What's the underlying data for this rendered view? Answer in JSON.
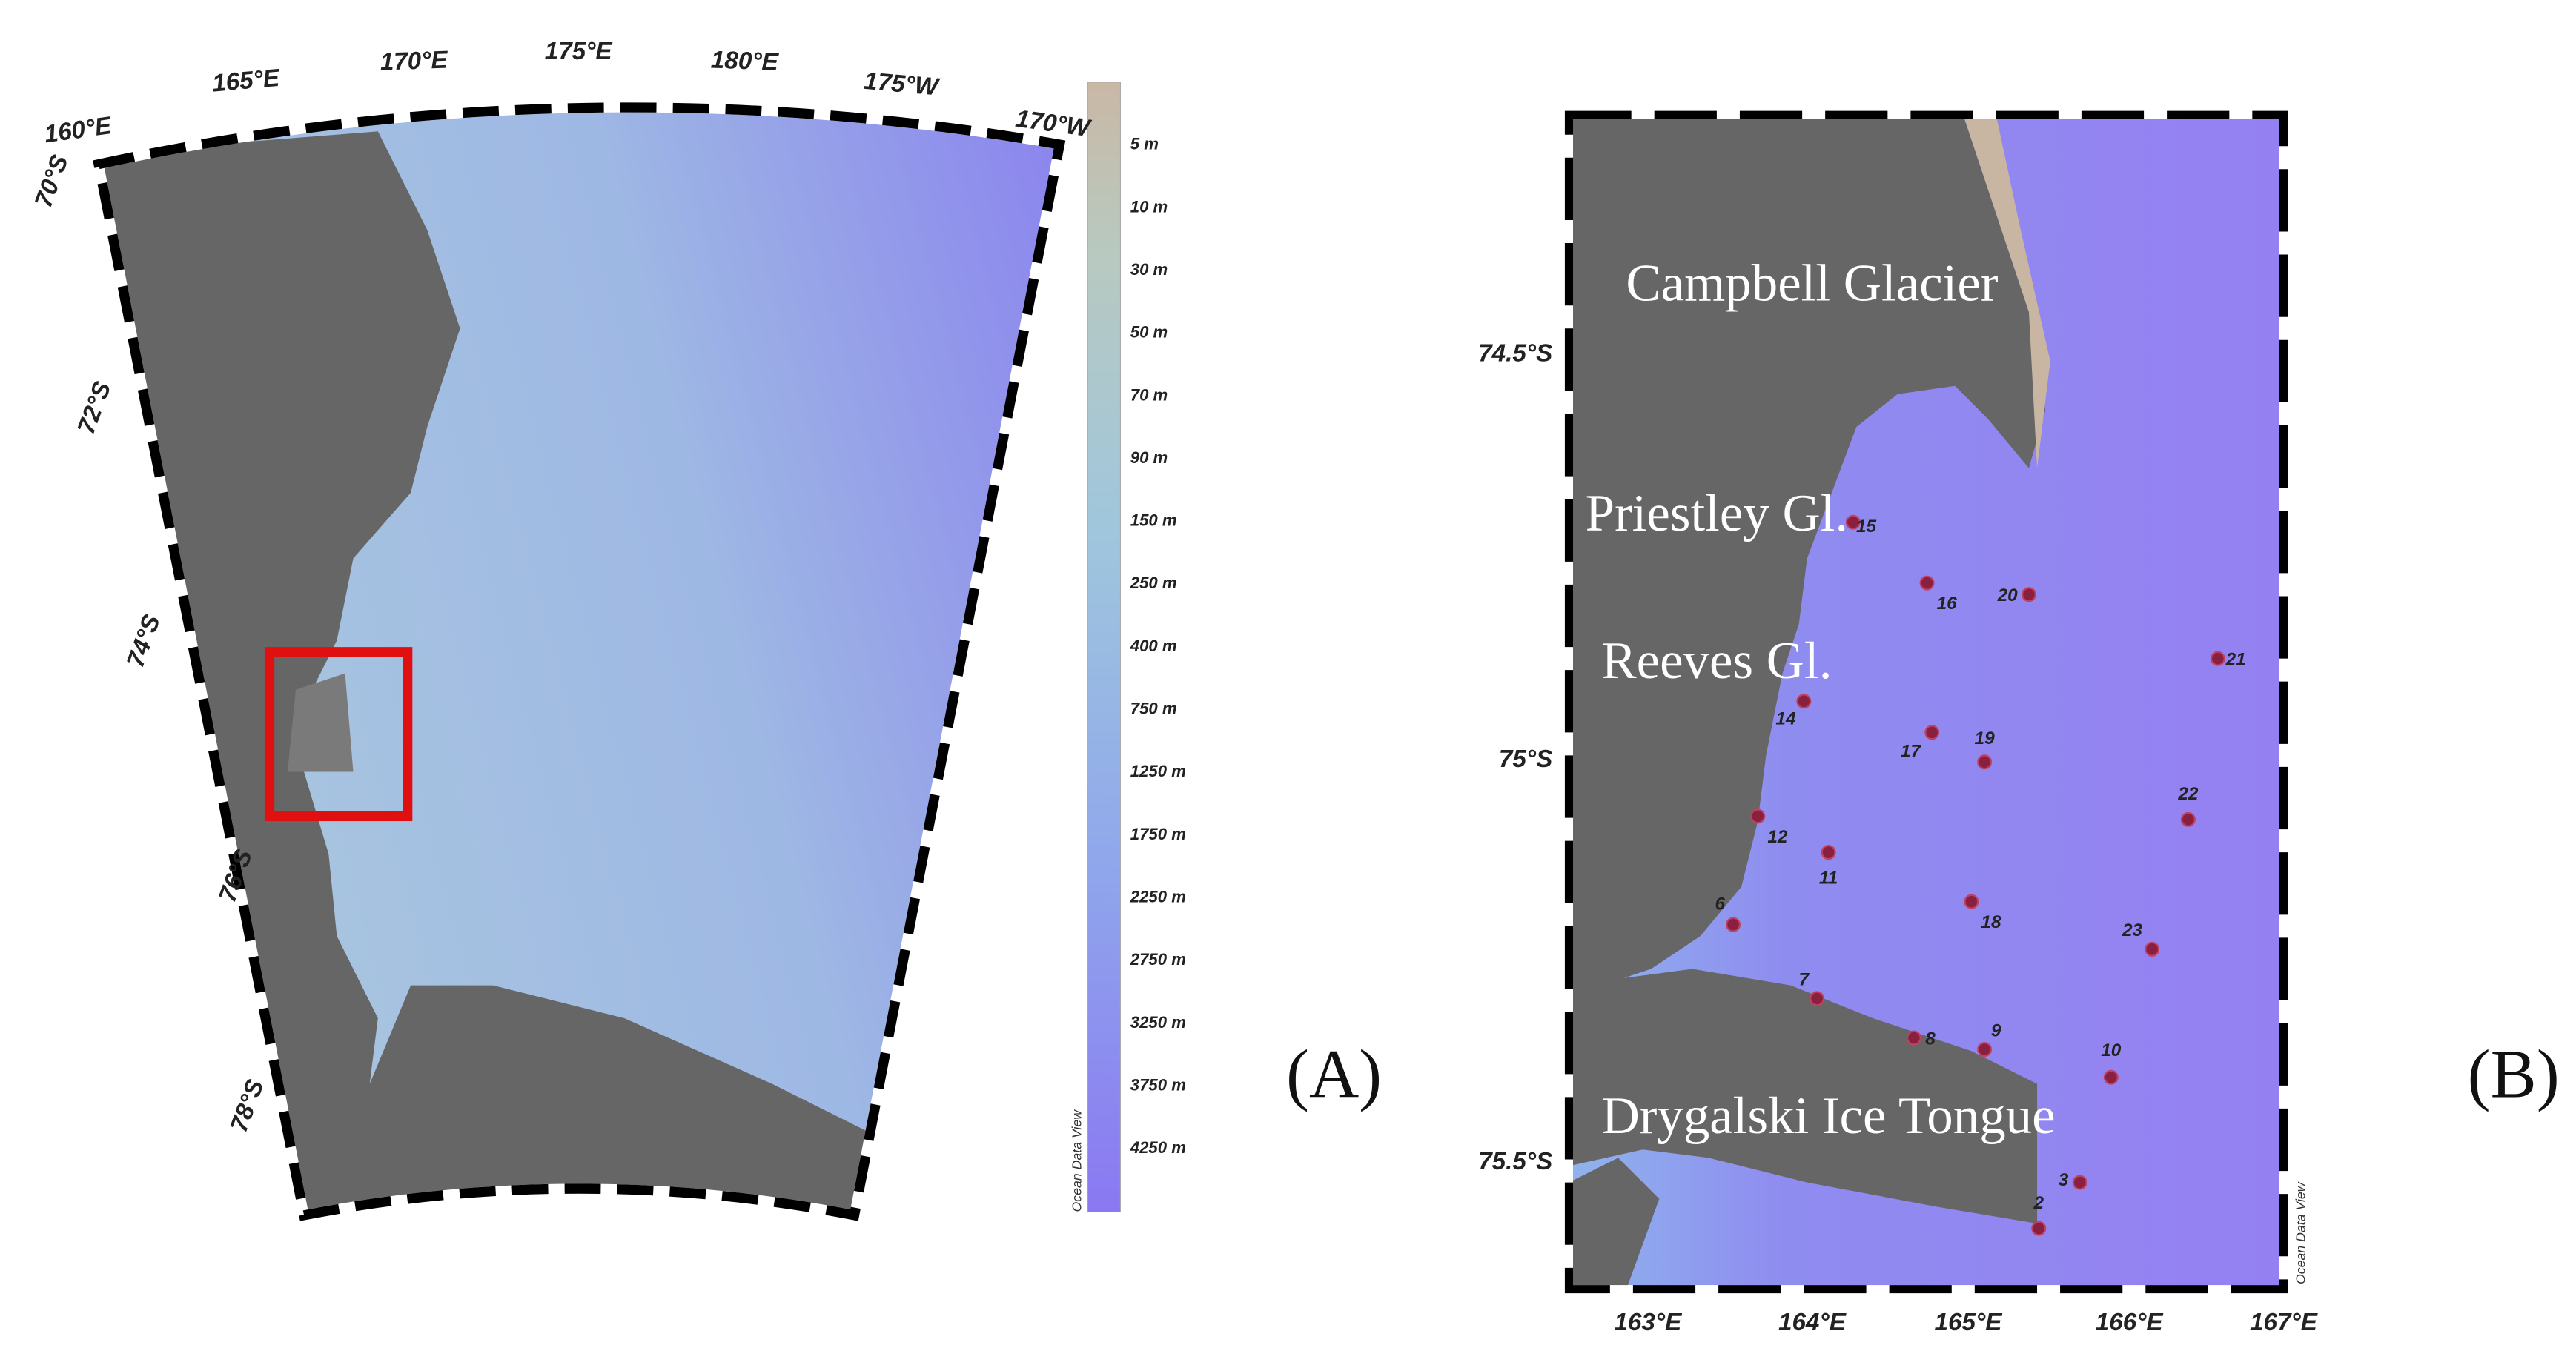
{
  "panel_a": {
    "lon_labels": [
      "160°E",
      "165°E",
      "170°E",
      "175°E",
      "180°E",
      "175°W",
      "170°W"
    ],
    "lat_labels": [
      "70°S",
      "72°S",
      "74°S",
      "76°S",
      "78°S"
    ],
    "colorbar_labels": [
      "5 m",
      "10 m",
      "30 m",
      "50 m",
      "70 m",
      "90 m",
      "150 m",
      "250 m",
      "400 m",
      "750 m",
      "1250 m",
      "1750 m",
      "2250 m",
      "2750 m",
      "3250 m",
      "3750 m",
      "4250 m"
    ],
    "credit": "Ocean Data View",
    "panel_label": "(A)"
  },
  "panel_b": {
    "places": [
      "Campbell Glacier",
      "Priestley Gl.",
      "Reeves Gl.",
      "Drygalski Ice Tongue"
    ],
    "stations": [
      "15",
      "16",
      "20",
      "21",
      "14",
      "17",
      "19",
      "22",
      "12",
      "11",
      "6",
      "18",
      "23",
      "7",
      "9",
      "8",
      "10",
      "3",
      "2"
    ],
    "lat_labels": [
      "74.5°S",
      "75°S",
      "75.5°S"
    ],
    "lon_labels": [
      "163°E",
      "164°E",
      "165°E",
      "166°E",
      "167°E"
    ],
    "credit": "Ocean Data View",
    "panel_label": "(B)"
  }
}
